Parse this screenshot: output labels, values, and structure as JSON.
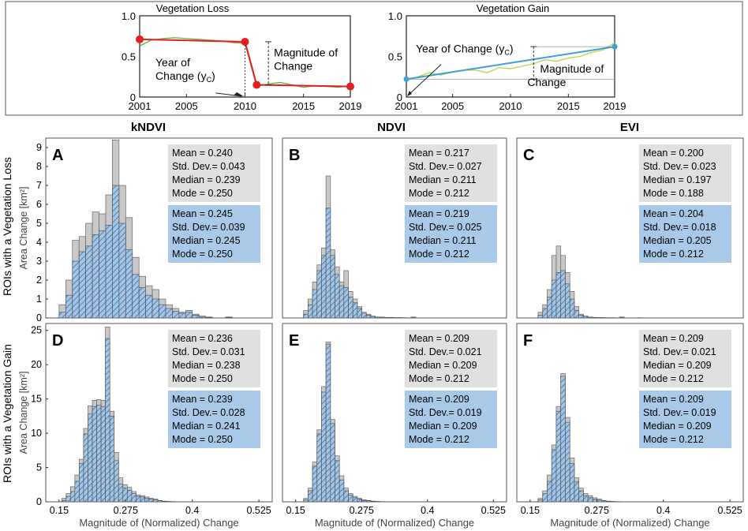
{
  "colors": {
    "gray_bar": "#c9c9c9",
    "blue_bar": "#a6c6e4",
    "blue_stripe": "#2f6fb0",
    "stats_gray": "#e0e0e0",
    "stats_blue": "#a8cae8",
    "loss_red": "#e41f1f",
    "loss_green": "#58b848",
    "gain_blue": "#3aa0d8",
    "gain_yellow": "#b7d644"
  },
  "schematic": {
    "loss": {
      "title": "Vegetation Loss",
      "year_label_1": "Year of",
      "year_label_2": "Change (y",
      "year_label_sub": "C",
      "year_label_close": ")",
      "magnitude_label_1": "Magnitude of",
      "magnitude_label_2": "Change"
    },
    "gain": {
      "title": "Vegetation Gain",
      "year_label": "Year of Change (y",
      "year_label_sub": "C",
      "year_label_close": ")",
      "magnitude_label_1": "Magnitude of",
      "magnitude_label_2": "Change"
    }
  },
  "chart_data": [
    {
      "type": "line",
      "id": "schematic-loss",
      "title": "Vegetation Loss",
      "xlim": [
        2001,
        2019
      ],
      "ylim": [
        0,
        1
      ],
      "xticks": [
        "2001",
        "2005",
        "2010",
        "2015",
        "2019"
      ],
      "yticks": [
        "0",
        "0.5",
        "1.0"
      ],
      "series": [
        {
          "name": "fitted",
          "color": "red",
          "x": [
            2001,
            2010,
            2011,
            2019
          ],
          "y": [
            0.71,
            0.68,
            0.15,
            0.13
          ]
        },
        {
          "name": "observed",
          "color": "green",
          "x": [
            2001,
            2002,
            2003,
            2004,
            2005,
            2006,
            2007,
            2008,
            2009,
            2010,
            2011,
            2012,
            2013,
            2014,
            2015,
            2016,
            2017,
            2018,
            2019
          ],
          "y": [
            0.63,
            0.7,
            0.72,
            0.73,
            0.72,
            0.71,
            0.7,
            0.69,
            0.67,
            0.66,
            0.13,
            0.16,
            0.18,
            0.15,
            0.12,
            0.14,
            0.13,
            0.12,
            0.14
          ]
        }
      ]
    },
    {
      "type": "line",
      "id": "schematic-gain",
      "title": "Vegetation Gain",
      "xlim": [
        2001,
        2019
      ],
      "ylim": [
        0,
        1
      ],
      "xticks": [
        "2001",
        "2005",
        "2010",
        "2015",
        "2019"
      ],
      "yticks": [
        "0",
        "0.5",
        "1.0"
      ],
      "series": [
        {
          "name": "fitted",
          "color": "blue",
          "x": [
            2001,
            2019
          ],
          "y": [
            0.22,
            0.62
          ]
        },
        {
          "name": "observed",
          "color": "yellow",
          "x": [
            2001,
            2002,
            2003,
            2004,
            2005,
            2006,
            2007,
            2008,
            2009,
            2010,
            2011,
            2012,
            2013,
            2014,
            2015,
            2016,
            2017,
            2018,
            2019
          ],
          "y": [
            0.2,
            0.25,
            0.3,
            0.27,
            0.31,
            0.33,
            0.33,
            0.3,
            0.36,
            0.35,
            0.38,
            0.41,
            0.46,
            0.44,
            0.48,
            0.5,
            0.55,
            0.58,
            0.67
          ]
        }
      ]
    },
    {
      "type": "bar",
      "id": "A",
      "panel_label": "A",
      "column_title": "kNDVI",
      "row": "loss",
      "ylabel": "Area Change [km²]",
      "ylim": [
        0,
        9.5
      ],
      "yticks": [
        "0",
        "1",
        "2",
        "3",
        "4",
        "5",
        "6",
        "7",
        "8",
        "9"
      ],
      "xlim": [
        0.125,
        0.55
      ],
      "bin_start": 0.15,
      "bin_width": 0.0125,
      "all": [
        0.7,
        2.0,
        4.1,
        4.3,
        5.0,
        5.6,
        5.5,
        6.5,
        9.4,
        7.0,
        5.3,
        3.2,
        2.2,
        1.7,
        1.5,
        1.0,
        0.7,
        0.5,
        0.3,
        0.4,
        0.2,
        0.1,
        0.05,
        0,
        0,
        0.05
      ],
      "filtered": [
        0.3,
        1.2,
        3.0,
        3.5,
        3.8,
        4.4,
        4.6,
        4.9,
        7.0,
        5.0,
        3.6,
        2.3,
        1.6,
        1.2,
        1.0,
        0.7,
        0.5,
        0.35,
        0.25,
        0.3,
        0.15,
        0.05,
        0.03,
        0,
        0,
        0.03
      ],
      "stats_all": {
        "mean": "Mean = 0.240",
        "std": "Std. Dev.= 0.043",
        "median": "Median = 0.239",
        "mode": "Mode = 0.250"
      },
      "stats_filtered": {
        "mean": "Mean = 0.245",
        "std": "Std. Dev.= 0.039",
        "median": "Median = 0.245",
        "mode": "Mode = 0.250"
      }
    },
    {
      "type": "bar",
      "id": "B",
      "panel_label": "B",
      "column_title": "NDVI",
      "row": "loss",
      "ylim": [
        0,
        9.5
      ],
      "xlim": [
        0.125,
        0.55
      ],
      "bin_start": 0.165,
      "bin_width": 0.0085,
      "all": [
        0.4,
        1.0,
        1.9,
        2.8,
        3.7,
        7.5,
        3.6,
        2.7,
        1.9,
        2.5,
        1.4,
        1.0,
        0.6,
        0.3,
        0.2,
        0.1,
        0.05,
        0.05,
        0.03,
        0.03,
        0.02,
        0.02,
        0.01,
        0,
        0.05
      ],
      "filtered": [
        0.2,
        0.7,
        1.5,
        2.5,
        3.3,
        5.8,
        3.3,
        2.3,
        1.7,
        1.6,
        1.1,
        0.8,
        0.5,
        0.25,
        0.15,
        0.08,
        0.04,
        0.04,
        0.02,
        0.02,
        0.01,
        0.01,
        0.01,
        0,
        0.04
      ],
      "stats_all": {
        "mean": "Mean = 0.217",
        "std": "Std. Dev.= 0.027",
        "median": "Median = 0.211",
        "mode": "Mode = 0.212"
      },
      "stats_filtered": {
        "mean": "Mean = 0.219",
        "std": "Std. Dev.= 0.025",
        "median": "Median = 0.211",
        "mode": "Mode = 0.212"
      }
    },
    {
      "type": "bar",
      "id": "C",
      "panel_label": "C",
      "column_title": "EVI",
      "row": "loss",
      "ylim": [
        0,
        9.5
      ],
      "xlim": [
        0.125,
        0.55
      ],
      "bin_start": 0.165,
      "bin_width": 0.0085,
      "all": [
        0.3,
        0.7,
        1.5,
        3.3,
        3.8,
        3.3,
        2.4,
        1.4,
        0.6,
        0.2,
        0.1,
        0.05,
        0.03,
        0.02,
        0.02,
        0.01,
        0.01,
        0,
        0.05,
        0,
        0,
        0,
        0.01
      ],
      "filtered": [
        0.15,
        0.5,
        1.1,
        2.0,
        2.4,
        2.5,
        1.8,
        1.0,
        0.4,
        0.15,
        0.08,
        0.04,
        0.02,
        0.02,
        0.01,
        0.01,
        0.01,
        0,
        0.04,
        0,
        0,
        0,
        0.01
      ],
      "stats_all": {
        "mean": "Mean = 0.200",
        "std": "Std. Dev.= 0.023",
        "median": "Median = 0.197",
        "mode": "Mode = 0.188"
      },
      "stats_filtered": {
        "mean": "Mean = 0.204",
        "std": "Std. Dev.= 0.018",
        "median": "Median = 0.205",
        "mode": "Mode = 0.212"
      }
    },
    {
      "type": "bar",
      "id": "D",
      "panel_label": "D",
      "row": "gain",
      "ylabel": "Area Change [km²]",
      "ylim": [
        0,
        26
      ],
      "yticks": [
        "0",
        "5",
        "10",
        "15",
        "20",
        "25"
      ],
      "xlim": [
        0.125,
        0.55
      ],
      "xticks": [
        "0.15",
        "0.275",
        "0.4",
        "0.525"
      ],
      "xlabel": "Magnitude of (Normalized) Change",
      "bin_start": 0.155,
      "bin_width": 0.0082,
      "all": [
        0.5,
        1.2,
        2.2,
        3.9,
        6.2,
        10.7,
        14.0,
        14.8,
        14.9,
        14.8,
        25.5,
        13.2,
        7.2,
        3.5,
        2.5,
        2.1,
        1.5,
        1.0,
        0.9,
        0.7,
        0.5,
        0.4,
        0.2,
        0.1,
        0.05,
        0.03,
        0.02,
        0,
        0.02,
        0,
        0,
        0.02,
        0,
        0,
        0.02
      ],
      "filtered": [
        0.2,
        0.8,
        1.5,
        3.0,
        5.6,
        9.9,
        12.8,
        13.9,
        14.1,
        13.9,
        23.8,
        12.5,
        6.0,
        2.6,
        2.0,
        1.7,
        1.2,
        0.8,
        0.7,
        0.5,
        0.4,
        0.3,
        0.15,
        0.08,
        0.04,
        0.02,
        0.01,
        0,
        0.01,
        0,
        0,
        0.01,
        0,
        0,
        0.01
      ],
      "stats_all": {
        "mean": "Mean = 0.236",
        "std": "Std. Dev.= 0.031",
        "median": "Median = 0.238",
        "mode": "Mode = 0.250"
      },
      "stats_filtered": {
        "mean": "Mean = 0.239",
        "std": "Std. Dev.= 0.028",
        "median": "Median = 0.241",
        "mode": "Mode = 0.250"
      }
    },
    {
      "type": "bar",
      "id": "E",
      "panel_label": "E",
      "row": "gain",
      "ylim": [
        0,
        26
      ],
      "xlim": [
        0.125,
        0.55
      ],
      "xticks": [
        "0.15",
        "0.275",
        "0.4",
        "0.525"
      ],
      "xlabel": "Magnitude of (Normalized) Change",
      "bin_start": 0.165,
      "bin_width": 0.0085,
      "all": [
        0.5,
        2.0,
        5.8,
        10.5,
        16.8,
        23.3,
        12.0,
        6.7,
        3.8,
        2.0,
        1.2,
        0.8,
        0.5,
        0.3,
        0.2,
        0.1,
        0.05,
        0.03,
        0.02,
        0.01,
        0.01,
        0.01,
        0,
        0.01
      ],
      "filtered": [
        0.3,
        1.6,
        5.2,
        9.9,
        16.0,
        23.0,
        11.4,
        6.0,
        3.2,
        1.6,
        1.0,
        0.6,
        0.4,
        0.2,
        0.15,
        0.08,
        0.04,
        0.02,
        0.01,
        0.01,
        0.01,
        0.01,
        0,
        0.01
      ],
      "stats_all": {
        "mean": "Mean = 0.209",
        "std": "Std. Dev.= 0.021",
        "median": "Median = 0.209",
        "mode": "Mode = 0.212"
      },
      "stats_filtered": {
        "mean": "Mean = 0.209",
        "std": "Std. Dev.= 0.019",
        "median": "Median = 0.209",
        "mode": "Mode = 0.212"
      }
    },
    {
      "type": "bar",
      "id": "F",
      "panel_label": "F",
      "row": "gain",
      "ylim": [
        0,
        26
      ],
      "xlim": [
        0.125,
        0.55
      ],
      "xticks": [
        "0.15",
        "0.275",
        "0.4",
        "0.525"
      ],
      "xlabel": "Magnitude of (Normalized) Change",
      "bin_start": 0.165,
      "bin_width": 0.0085,
      "all": [
        0.5,
        1.6,
        3.9,
        8.3,
        13.9,
        18.7,
        12.3,
        6.4,
        3.5,
        2.0,
        1.2,
        0.9,
        0.6,
        0.4,
        0.2,
        0.1,
        0.05,
        0.03,
        0.02,
        0.01,
        0.01,
        0.01,
        0,
        0.01
      ],
      "filtered": [
        0.3,
        1.2,
        3.0,
        7.6,
        13.2,
        18.3,
        11.6,
        5.6,
        2.9,
        1.6,
        0.9,
        0.6,
        0.4,
        0.25,
        0.15,
        0.08,
        0.04,
        0.02,
        0.01,
        0.01,
        0.01,
        0.01,
        0,
        0.01
      ],
      "stats_all": {
        "mean": "Mean = 0.209",
        "std": "Std. Dev.= 0.021",
        "median": "Median = 0.209",
        "mode": "Mode = 0.212"
      },
      "stats_filtered": {
        "mean": "Mean = 0.209",
        "std": "Std. Dev.= 0.019",
        "median": "Median = 0.209",
        "mode": "Mode = 0.212"
      }
    }
  ],
  "row_labels": {
    "loss": "ROIs with a Vegetation Loss",
    "gain": "ROIs with a Vegetation Gain"
  }
}
